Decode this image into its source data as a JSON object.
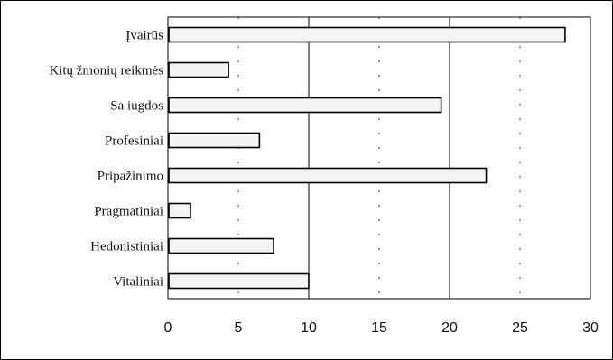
{
  "chart_data": {
    "type": "bar",
    "orientation": "horizontal",
    "categories": [
      "Įvairūs",
      "Kitų žmonių reikmės",
      "Sa iugdos",
      "Profesiniai",
      "Pripažinimo",
      "Pragmatiniai",
      "Hedonistiniai",
      "Vitaliniai"
    ],
    "values": [
      28.2,
      4.3,
      19.4,
      6.5,
      22.6,
      1.6,
      7.5,
      10.0
    ],
    "xlim": [
      0,
      30
    ],
    "xticks": [
      "0",
      "5",
      "10",
      "15",
      "20",
      "25",
      "30"
    ],
    "grid": true,
    "title": "",
    "xlabel": "",
    "ylabel": ""
  },
  "colors": {
    "bar_fill": "#f4f4f4",
    "bar_stroke": "#000000",
    "grid": "#000000",
    "axis": "#000000"
  }
}
